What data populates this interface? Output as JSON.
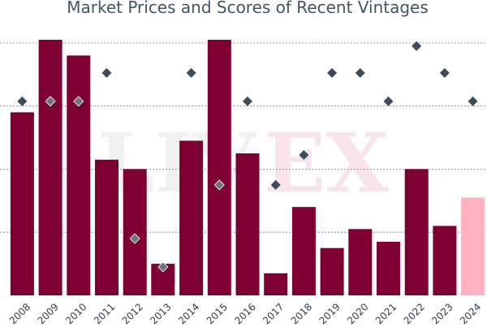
{
  "title": "Market Prices and Scores of Recent Vintages",
  "watermark": {
    "text_left": "LIV",
    "text_right": "EX"
  },
  "colors": {
    "bar": "#7e0032",
    "bar_highlight": "#ffb3c0",
    "marker": "#3c4c5c",
    "marker_on_bar": "#6b7682",
    "marker_edge": "#ffffff",
    "grid": "#7f7f7f",
    "axis_text": "#2f3e4b",
    "title": "#405663"
  },
  "chart_data": {
    "type": "bar",
    "title": "Market Prices and Scores of Recent Vintages",
    "xlabel": "",
    "ylabel": "",
    "categories": [
      "2008",
      "2009",
      "2010",
      "2011",
      "2012",
      "2013",
      "2014",
      "2015",
      "2016",
      "2017",
      "2018",
      "2019",
      "2020",
      "2021",
      "2022",
      "2023",
      "2024"
    ],
    "ylim": [
      0,
      100
    ],
    "series": [
      {
        "kind": "bar",
        "values": [
          58,
          81,
          76,
          43,
          40,
          10,
          49,
          81,
          45,
          7,
          28,
          15,
          21,
          17,
          40,
          22,
          31
        ],
        "highlight_index": 16
      },
      {
        "kind": "scatter",
        "marker": "diamond",
        "values": [
          61.5,
          61.5,
          61.5,
          70.5,
          18,
          9,
          70.5,
          35,
          61.5,
          35,
          44.5,
          70.5,
          70.5,
          61.5,
          79,
          70.5,
          61.5
        ]
      }
    ],
    "grid": true,
    "gridlines_y": [
      20,
      40,
      60,
      80
    ],
    "legend": "none"
  }
}
